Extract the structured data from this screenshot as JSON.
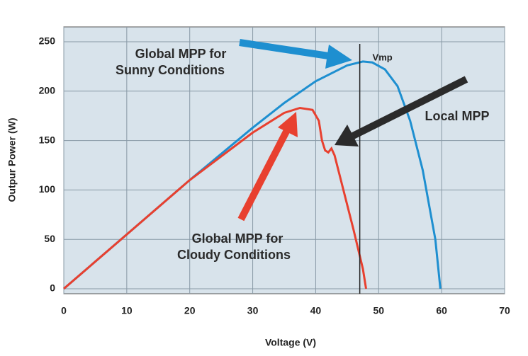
{
  "chart_data": {
    "type": "line",
    "x_label": "Voltage (V)",
    "y_label": "Outpur Power (W)",
    "xlim": [
      0,
      70
    ],
    "ylim": [
      -5,
      265
    ],
    "xticks": [
      0,
      10,
      20,
      30,
      40,
      50,
      60,
      70
    ],
    "yticks": [
      0,
      50,
      100,
      150,
      200,
      250
    ],
    "grid": true,
    "series": [
      {
        "name": "Sunny",
        "color": "#1e8fd0",
        "x": [
          0,
          10,
          20,
          30,
          35,
          40,
          45,
          47.5,
          49,
          51,
          53,
          55,
          57,
          59,
          59.8
        ],
        "values": [
          0,
          55,
          110,
          163,
          188,
          210,
          226,
          230,
          229,
          222,
          205,
          170,
          120,
          50,
          0
        ]
      },
      {
        "name": "Cloudy",
        "color": "#e8402f",
        "x": [
          0,
          10,
          20,
          30,
          35,
          37.5,
          39.5,
          40.5,
          41,
          41.5,
          42,
          42.5,
          43,
          44,
          46,
          47.5,
          48
        ],
        "values": [
          0,
          55,
          110,
          158,
          178,
          183,
          181,
          170,
          150,
          140,
          138,
          142,
          135,
          110,
          60,
          20,
          0
        ]
      }
    ],
    "vline": {
      "label": "Vmp",
      "x": 47
    },
    "annotations": [
      [
        "Global MPP for",
        "Sunny Conditions"
      ],
      [
        "Local MPP"
      ],
      [
        "Global MPP for",
        "Cloudy Conditions"
      ]
    ]
  }
}
